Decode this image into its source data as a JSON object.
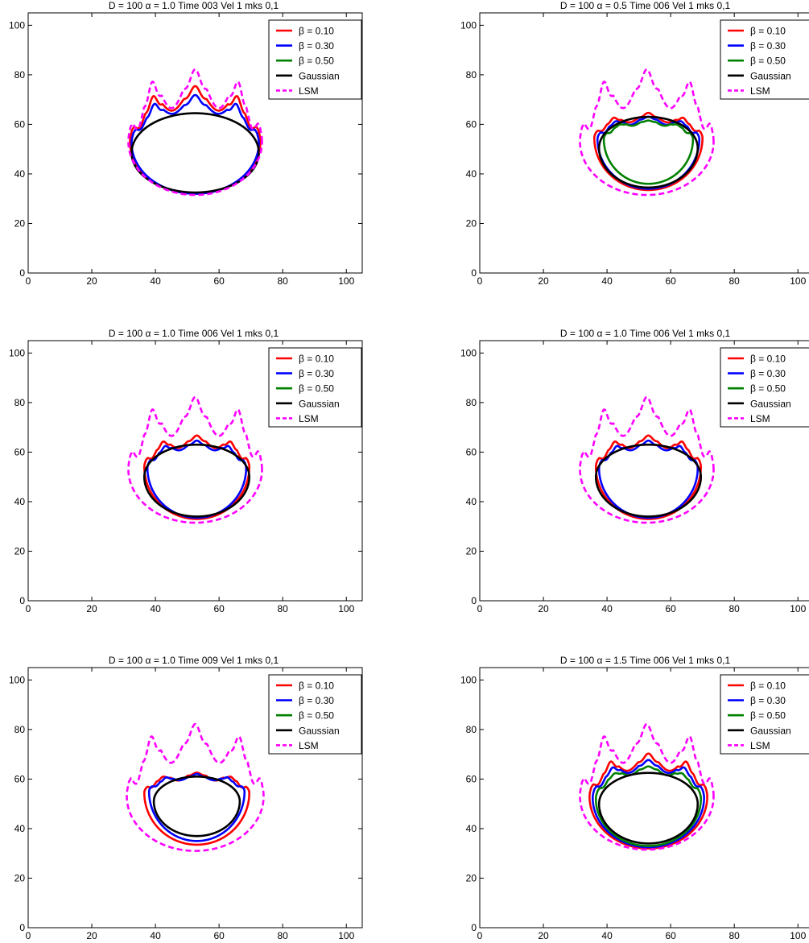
{
  "figure": {
    "background": "#ffffff"
  },
  "legend_labels": [
    "β = 0.10",
    "β  = 0.30",
    "β = 0.50",
    "Gaussian",
    "LSM"
  ],
  "colors": {
    "b010": "#ff0000",
    "b030": "#0000ff",
    "b050": "#008000",
    "gaussian": "#000000",
    "lsm": "#ff00ff"
  },
  "chart_data": [
    {
      "type": "line",
      "title": "D = 100 α = 1.0 Time 003 Vel 1 mks 0,1",
      "xlim": [
        0,
        105
      ],
      "ylim": [
        0,
        105
      ],
      "xticks": [
        0,
        20,
        40,
        60,
        80,
        100
      ],
      "yticks": [
        0,
        20,
        40,
        60,
        80,
        100
      ],
      "xlabel": "",
      "ylabel": "",
      "grid": false,
      "legend": "top-right",
      "series": [
        {
          "name": "β = 0.10",
          "key": "b010",
          "style": "solid",
          "contour": {
            "cx": 52.5,
            "bottom": 32.0,
            "top": 70.5,
            "rx": 20.5,
            "ry": 21,
            "finger_h": 9,
            "dip_d": 7,
            "shift": 0
          }
        },
        {
          "name": "β  = 0.30",
          "key": "b030",
          "style": "solid",
          "contour": {
            "cx": 52.5,
            "bottom": 32.0,
            "top": 68.0,
            "rx": 20.0,
            "ry": 20.5,
            "finger_h": 7,
            "dip_d": 5,
            "shift": 0
          }
        },
        {
          "name": "β = 0.50",
          "key": "b050",
          "style": "solid",
          "contour": null
        },
        {
          "name": "Gaussian",
          "key": "gaussian",
          "style": "solid",
          "contour": {
            "cx": 52.5,
            "bottom": 32.5,
            "top": 64.5,
            "rx": 20.0,
            "ry": 16,
            "finger_h": 0,
            "dip_d": 0,
            "shift": 0
          }
        },
        {
          "name": "LSM",
          "key": "lsm",
          "style": "dashed",
          "contour": {
            "cx": 52.5,
            "bottom": 31.5,
            "top": 74.5,
            "rx": 21.0,
            "ry": 21.5,
            "finger_h": 14,
            "dip_d": 12,
            "shift": 0
          }
        }
      ]
    },
    {
      "type": "line",
      "title": "D = 100 α = 0.5 Time 006 Vel 1 mks 0,1",
      "xlim": [
        0,
        105
      ],
      "ylim": [
        0,
        105
      ],
      "xticks": [
        0,
        20,
        40,
        60,
        80,
        100
      ],
      "yticks": [
        0,
        20,
        40,
        60,
        80,
        100
      ],
      "xlabel": "",
      "ylabel": "",
      "grid": false,
      "legend": "top-right",
      "series": [
        {
          "name": "β = 0.10",
          "key": "b010",
          "style": "solid",
          "contour": {
            "cx": 53.0,
            "bottom": 33.5,
            "top": 63.0,
            "rx": 17.0,
            "ry": 21,
            "finger_h": 3,
            "dip_d": 3,
            "shift": 0
          }
        },
        {
          "name": "β  = 0.30",
          "key": "b030",
          "style": "solid",
          "contour": {
            "cx": 53.0,
            "bottom": 34.0,
            "top": 62.0,
            "rx": 16.0,
            "ry": 20,
            "finger_h": 2,
            "dip_d": 3,
            "shift": 0
          }
        },
        {
          "name": "β = 0.50",
          "key": "b050",
          "style": "solid",
          "contour": {
            "cx": 53.0,
            "bottom": 36.0,
            "top": 61.0,
            "rx": 14.0,
            "ry": 18,
            "finger_h": 1,
            "dip_d": 2,
            "shift": 0
          }
        },
        {
          "name": "Gaussian",
          "key": "gaussian",
          "style": "solid",
          "contour": {
            "cx": 53.0,
            "bottom": 34.5,
            "top": 63.0,
            "rx": 15.5,
            "ry": 16,
            "finger_h": 0,
            "dip_d": 0,
            "shift": 0
          }
        },
        {
          "name": "LSM",
          "key": "lsm",
          "style": "dashed",
          "contour": {
            "cx": 52.5,
            "bottom": 31.5,
            "top": 74.5,
            "rx": 21.0,
            "ry": 21.5,
            "finger_h": 14,
            "dip_d": 12,
            "shift": 0
          }
        }
      ]
    },
    {
      "type": "line",
      "title": "D = 100 α = 1.0 Time 006 Vel 1 mks 0,1",
      "xlim": [
        0,
        105
      ],
      "ylim": [
        0,
        105
      ],
      "xticks": [
        0,
        20,
        40,
        60,
        80,
        100
      ],
      "yticks": [
        0,
        20,
        40,
        60,
        80,
        100
      ],
      "xlabel": "",
      "ylabel": "",
      "grid": false,
      "legend": "top-right",
      "series": [
        {
          "name": "β = 0.10",
          "key": "b010",
          "style": "solid",
          "contour": {
            "cx": 53.0,
            "bottom": 33.0,
            "top": 64.5,
            "rx": 16.5,
            "ry": 21,
            "finger_h": 4,
            "dip_d": 4,
            "shift": 0
          }
        },
        {
          "name": "β  = 0.30",
          "key": "b030",
          "style": "solid",
          "contour": {
            "cx": 53.0,
            "bottom": 33.5,
            "top": 63.0,
            "rx": 15.5,
            "ry": 20,
            "finger_h": 3,
            "dip_d": 3,
            "shift": 0
          }
        },
        {
          "name": "β = 0.50",
          "key": "b050",
          "style": "solid",
          "contour": null
        },
        {
          "name": "Gaussian",
          "key": "gaussian",
          "style": "solid",
          "contour": {
            "cx": 53.0,
            "bottom": 34.0,
            "top": 63.0,
            "rx": 16.5,
            "ry": 16,
            "finger_h": 0,
            "dip_d": 0,
            "shift": 0
          }
        },
        {
          "name": "LSM",
          "key": "lsm",
          "style": "dashed",
          "contour": {
            "cx": 52.5,
            "bottom": 31.5,
            "top": 74.5,
            "rx": 21.0,
            "ry": 21.5,
            "finger_h": 14,
            "dip_d": 12,
            "shift": 0
          }
        }
      ]
    },
    {
      "type": "line",
      "title": "D = 100 α = 1.0 Time 006 Vel 1 mks 0,1",
      "xlim": [
        0,
        105
      ],
      "ylim": [
        0,
        105
      ],
      "xticks": [
        0,
        20,
        40,
        60,
        80,
        100
      ],
      "yticks": [
        0,
        20,
        40,
        60,
        80,
        100
      ],
      "xlabel": "",
      "ylabel": "",
      "grid": false,
      "legend": "top-right",
      "series": [
        {
          "name": "β = 0.10",
          "key": "b010",
          "style": "solid",
          "contour": {
            "cx": 53.0,
            "bottom": 33.0,
            "top": 64.5,
            "rx": 16.5,
            "ry": 21,
            "finger_h": 4,
            "dip_d": 4,
            "shift": 0
          }
        },
        {
          "name": "β  = 0.30",
          "key": "b030",
          "style": "solid",
          "contour": {
            "cx": 53.0,
            "bottom": 33.5,
            "top": 63.0,
            "rx": 15.5,
            "ry": 20,
            "finger_h": 3,
            "dip_d": 3,
            "shift": 0
          }
        },
        {
          "name": "β = 0.50",
          "key": "b050",
          "style": "solid",
          "contour": null
        },
        {
          "name": "Gaussian",
          "key": "gaussian",
          "style": "solid",
          "contour": {
            "cx": 53.0,
            "bottom": 34.0,
            "top": 63.0,
            "rx": 16.5,
            "ry": 16,
            "finger_h": 0,
            "dip_d": 0,
            "shift": 0
          }
        },
        {
          "name": "LSM",
          "key": "lsm",
          "style": "dashed",
          "contour": {
            "cx": 52.5,
            "bottom": 31.5,
            "top": 74.5,
            "rx": 21.0,
            "ry": 21.5,
            "finger_h": 14,
            "dip_d": 12,
            "shift": 0
          }
        }
      ]
    },
    {
      "type": "line",
      "title": "D = 100 α = 1.0 Time 009 Vel 1 mks 0,1",
      "xlim": [
        0,
        105
      ],
      "ylim": [
        0,
        105
      ],
      "xticks": [
        0,
        20,
        40,
        60,
        80,
        100
      ],
      "yticks": [
        0,
        20,
        40,
        60,
        80,
        100
      ],
      "xlabel": "",
      "ylabel": "",
      "grid": false,
      "legend": "top-right",
      "series": [
        {
          "name": "β = 0.10",
          "key": "b010",
          "style": "solid",
          "contour": {
            "cx": 53.0,
            "bottom": 33.5,
            "top": 61.5,
            "rx": 16.5,
            "ry": 21,
            "finger_h": 2,
            "dip_d": 3,
            "shift": 0
          }
        },
        {
          "name": "β  = 0.30",
          "key": "b030",
          "style": "solid",
          "contour": {
            "cx": 53.0,
            "bottom": 35.0,
            "top": 61.0,
            "rx": 15.0,
            "ry": 20,
            "finger_h": 2,
            "dip_d": 2,
            "shift": 0
          }
        },
        {
          "name": "β = 0.50",
          "key": "b050",
          "style": "solid",
          "contour": null
        },
        {
          "name": "Gaussian",
          "key": "gaussian",
          "style": "solid",
          "contour": {
            "cx": 53.0,
            "bottom": 37.0,
            "top": 61.0,
            "rx": 13.5,
            "ry": 14,
            "finger_h": 0,
            "dip_d": 0,
            "shift": 0
          }
        },
        {
          "name": "LSM",
          "key": "lsm",
          "style": "dashed",
          "contour": {
            "cx": 52.5,
            "bottom": 31.0,
            "top": 74.5,
            "rx": 21.5,
            "ry": 22,
            "finger_h": 14,
            "dip_d": 12,
            "shift": 0
          }
        }
      ]
    },
    {
      "type": "line",
      "title": "D = 100 α = 1.5 Time 006 Vel 1 mks 0,1",
      "xlim": [
        0,
        105
      ],
      "ylim": [
        0,
        105
      ],
      "xticks": [
        0,
        20,
        40,
        60,
        80,
        100
      ],
      "yticks": [
        0,
        20,
        40,
        60,
        80,
        100
      ],
      "xlabel": "",
      "ylabel": "",
      "grid": false,
      "legend": "top-right",
      "series": [
        {
          "name": "β = 0.10",
          "key": "b010",
          "style": "solid",
          "contour": {
            "cx": 53.0,
            "bottom": 32.0,
            "top": 67.0,
            "rx": 18.5,
            "ry": 21,
            "finger_h": 6,
            "dip_d": 5,
            "shift": 0
          }
        },
        {
          "name": "β  = 0.30",
          "key": "b030",
          "style": "solid",
          "contour": {
            "cx": 53.0,
            "bottom": 32.5,
            "top": 65.5,
            "rx": 17.5,
            "ry": 20,
            "finger_h": 4,
            "dip_d": 4,
            "shift": 0
          }
        },
        {
          "name": "β = 0.50",
          "key": "b050",
          "style": "solid",
          "contour": {
            "cx": 53.0,
            "bottom": 33.0,
            "top": 64.0,
            "rx": 16.5,
            "ry": 19,
            "finger_h": 2,
            "dip_d": 3,
            "shift": 0
          }
        },
        {
          "name": "Gaussian",
          "key": "gaussian",
          "style": "solid",
          "contour": {
            "cx": 53.0,
            "bottom": 34.0,
            "top": 62.5,
            "rx": 15.5,
            "ry": 16,
            "finger_h": 0,
            "dip_d": 0,
            "shift": 0
          }
        },
        {
          "name": "LSM",
          "key": "lsm",
          "style": "dashed",
          "contour": {
            "cx": 52.5,
            "bottom": 31.5,
            "top": 74.5,
            "rx": 21.0,
            "ry": 21.5,
            "finger_h": 14,
            "dip_d": 12,
            "shift": 0
          }
        }
      ]
    }
  ]
}
